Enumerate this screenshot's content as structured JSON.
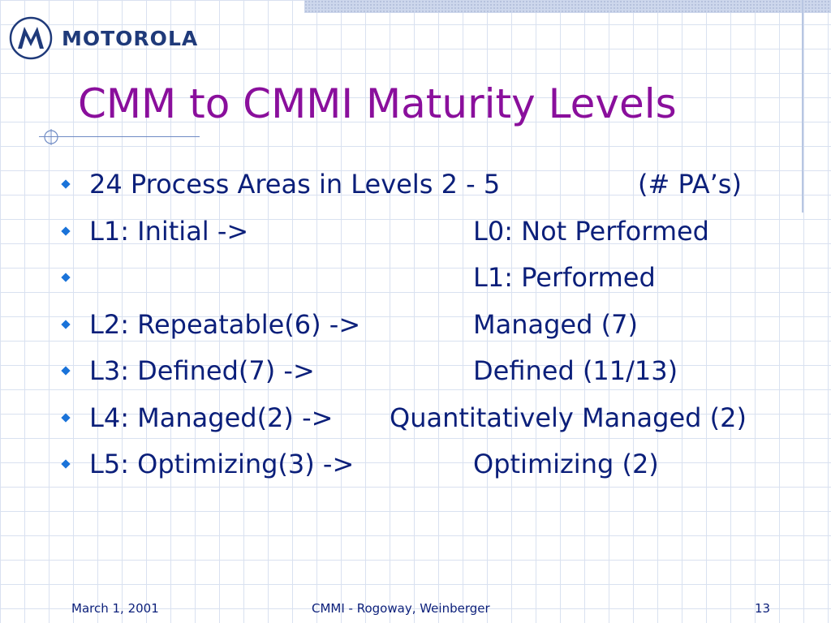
{
  "header": {
    "brand": "MOTOROLA",
    "logo_icon": "motorola-batwing-m-icon"
  },
  "slide": {
    "title": "CMM to CMMI Maturity Levels",
    "bullets": [
      {
        "left": "24 Process Areas in Levels 2 - 5",
        "right": "(# PA’s)"
      },
      {
        "left": "L1: Initial ->",
        "right": "L0: Not Performed"
      },
      {
        "left": "",
        "right": "L1: Performed"
      },
      {
        "left": "L2: Repeatable(6) ->",
        "right": "Managed (7)"
      },
      {
        "left": "L3: Defined(7) ->",
        "right": "Defined (11/13)"
      },
      {
        "left": "L4: Managed(2) ->",
        "right": "Quantitatively Managed (2)"
      },
      {
        "left": "L5: Optimizing(3) ->",
        "right": "Optimizing (2)"
      }
    ]
  },
  "footer": {
    "date": "March 1, 2001",
    "center": "CMMI - Rogoway, Weinberger",
    "page": "13"
  },
  "colors": {
    "title": "#8a0f9c",
    "body_text": "#0b1f7a",
    "bullet": "#1a73d9",
    "grid": "#d9e1f0",
    "brand": "#1f3a7a"
  }
}
